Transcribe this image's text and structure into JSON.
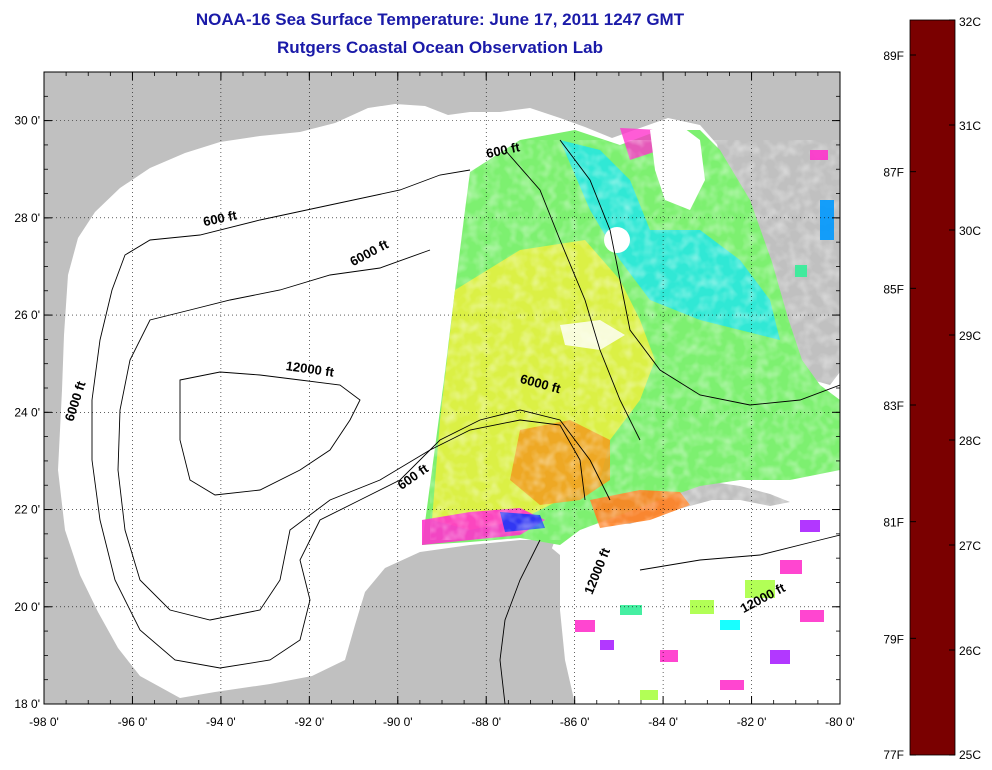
{
  "header": {
    "title": "NOAA-16 Sea Surface Temperature:  June 17, 2011 1247 GMT",
    "subtitle": "Rutgers Coastal Ocean Observation Lab"
  },
  "map": {
    "lon_range": [
      -98,
      -80
    ],
    "lat_range": [
      18,
      31
    ],
    "lon_ticks": [
      {
        "value": -98,
        "label": "-98 0'"
      },
      {
        "value": -96,
        "label": "-96 0'"
      },
      {
        "value": -94,
        "label": "-94 0'"
      },
      {
        "value": -92,
        "label": "-92 0'"
      },
      {
        "value": -90,
        "label": "-90 0'"
      },
      {
        "value": -88,
        "label": "-88 0'"
      },
      {
        "value": -86,
        "label": "-86 0'"
      },
      {
        "value": -84,
        "label": "-84 0'"
      },
      {
        "value": -82,
        "label": "-82 0'"
      },
      {
        "value": -80,
        "label": "-80 0'"
      }
    ],
    "lat_ticks": [
      {
        "value": 18,
        "label": "18 0'"
      },
      {
        "value": 20,
        "label": "20 0'"
      },
      {
        "value": 22,
        "label": "22 0'"
      },
      {
        "value": 24,
        "label": "24 0'"
      },
      {
        "value": 26,
        "label": "26 0'"
      },
      {
        "value": 28,
        "label": "28 0'"
      },
      {
        "value": 30,
        "label": "30 0'"
      }
    ],
    "contour_labels": [
      {
        "text": "600 ft",
        "lon": -94.0,
        "lat": 27.9,
        "rot": -12
      },
      {
        "text": "6000 ft",
        "lon": -90.6,
        "lat": 27.2,
        "rot": -28
      },
      {
        "text": "600 ft",
        "lon": -87.6,
        "lat": 29.3,
        "rot": -12
      },
      {
        "text": "12000 ft",
        "lon": -92.0,
        "lat": 24.8,
        "rot": 8
      },
      {
        "text": "6000 ft",
        "lon": -97.2,
        "lat": 24.2,
        "rot": -72
      },
      {
        "text": "6000 ft",
        "lon": -86.8,
        "lat": 24.5,
        "rot": 15
      },
      {
        "text": "600 ft",
        "lon": -89.6,
        "lat": 22.6,
        "rot": -35
      },
      {
        "text": "12000 ft",
        "lon": -85.4,
        "lat": 20.7,
        "rot": -68
      },
      {
        "text": "12000 ft",
        "lon": -81.7,
        "lat": 20.1,
        "rot": -28
      }
    ],
    "colors": {
      "land": "#c0c0c0",
      "water_no_data": "#ffffff",
      "contour": "#000000",
      "grid": "#000000",
      "title": "#1a1aa8"
    }
  },
  "colorbar": {
    "celsius": [
      {
        "value": 32,
        "label": "32C"
      },
      {
        "value": 31,
        "label": "31C"
      },
      {
        "value": 30,
        "label": "30C"
      },
      {
        "value": 29,
        "label": "29C"
      },
      {
        "value": 28,
        "label": "28C"
      },
      {
        "value": 27,
        "label": "27C"
      },
      {
        "value": 26,
        "label": "26C"
      },
      {
        "value": 25,
        "label": "25C"
      }
    ],
    "fahrenheit": [
      {
        "value": 89,
        "label": "89F"
      },
      {
        "value": 87,
        "label": "87F"
      },
      {
        "value": 85,
        "label": "85F"
      },
      {
        "value": 83,
        "label": "83F"
      },
      {
        "value": 81,
        "label": "81F"
      },
      {
        "value": 79,
        "label": "79F"
      },
      {
        "value": 77,
        "label": "77F"
      }
    ],
    "stops": [
      {
        "c": 32,
        "color": "#7a0000"
      },
      {
        "c": 31.5,
        "color": "#c00000"
      },
      {
        "c": 31,
        "color": "#ff1010"
      },
      {
        "c": 30.5,
        "color": "#ff5000"
      },
      {
        "c": 30,
        "color": "#ff9900"
      },
      {
        "c": 29.5,
        "color": "#ffcc00"
      },
      {
        "c": 29,
        "color": "#ffff00"
      },
      {
        "c": 28.5,
        "color": "#aaff44"
      },
      {
        "c": 28,
        "color": "#33ee99"
      },
      {
        "c": 27.5,
        "color": "#00ffff"
      },
      {
        "c": 27,
        "color": "#0099ff"
      },
      {
        "c": 26.5,
        "color": "#0033ff"
      },
      {
        "c": 26,
        "color": "#0000cc"
      },
      {
        "c": 25.8,
        "color": "#5522ee"
      },
      {
        "c": 25.5,
        "color": "#aa22ff"
      },
      {
        "c": 25.2,
        "color": "#ee22cc"
      },
      {
        "c": 25,
        "color": "#ff33cc"
      }
    ]
  }
}
